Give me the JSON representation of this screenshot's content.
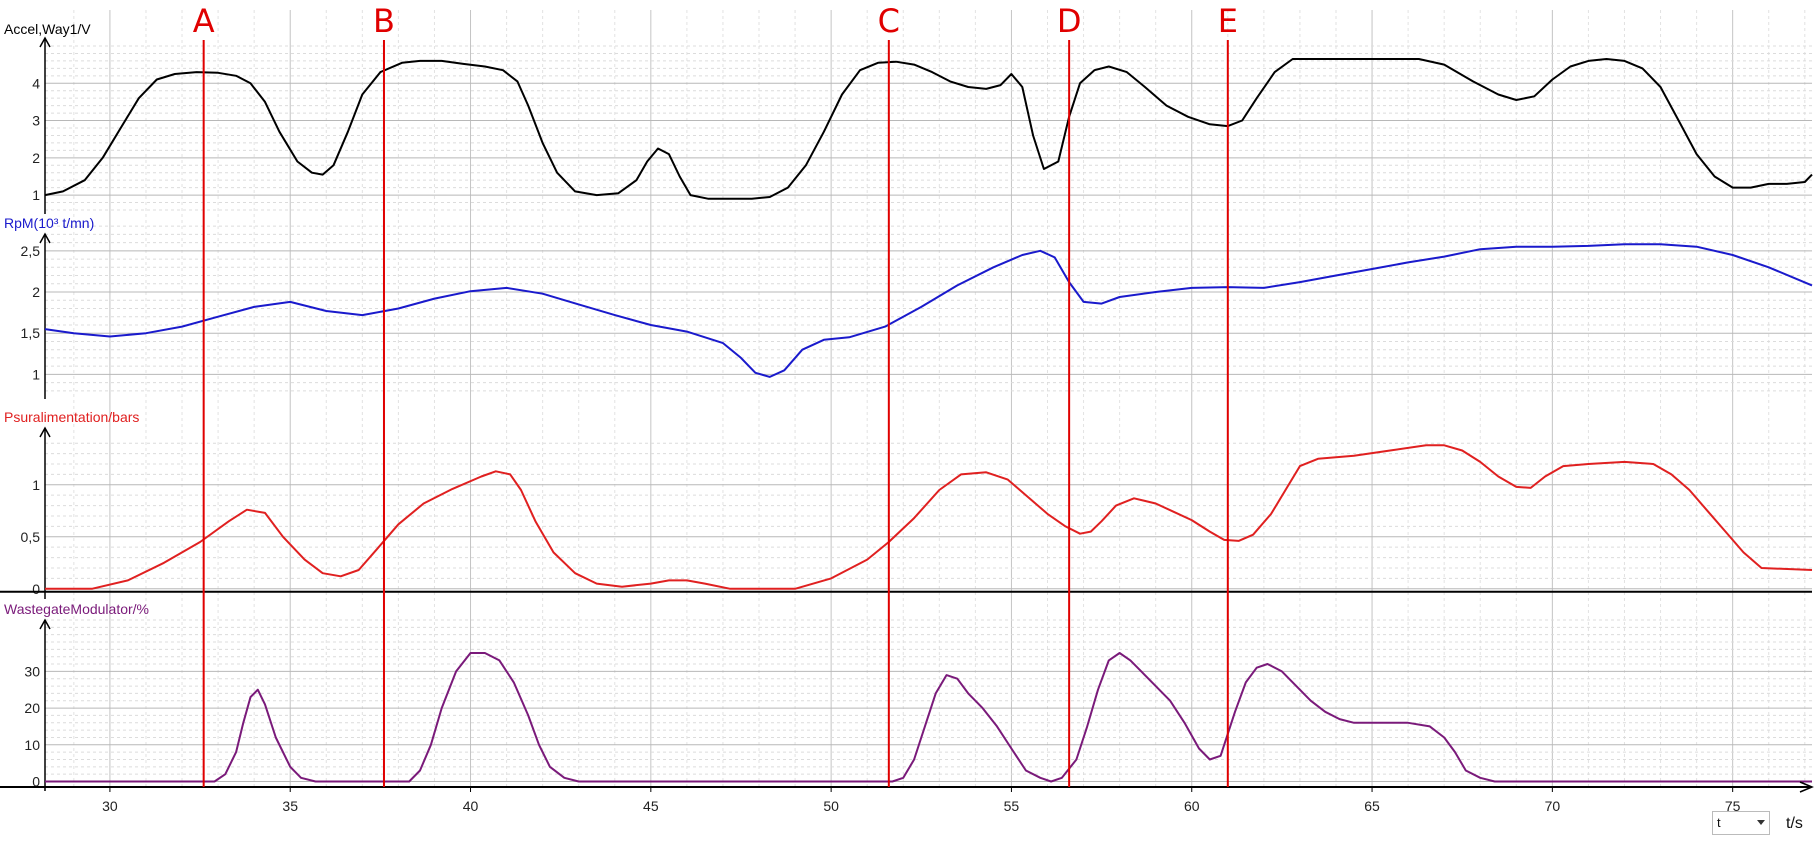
{
  "chart_data": {
    "type": "line",
    "xlim": [
      28.2,
      77.2
    ],
    "x_ticks": [
      30,
      35,
      40,
      45,
      50,
      55,
      60,
      65,
      70,
      75
    ],
    "x_axis_unit": "t/s",
    "x_selector_value": "t",
    "grid": true,
    "markers": [
      {
        "label": "A",
        "x": 32.6
      },
      {
        "label": "B",
        "x": 37.6
      },
      {
        "label": "C",
        "x": 51.6
      },
      {
        "label": "D",
        "x": 56.6
      },
      {
        "label": "E",
        "x": 61.0
      }
    ],
    "panels": [
      {
        "name": "Accel,Way1/V",
        "color": "#000000",
        "ylim": [
          0.6,
          5.0
        ],
        "y_ticks": [
          {
            "v": 1,
            "label": "1"
          },
          {
            "v": 2,
            "label": "2"
          },
          {
            "v": 3,
            "label": "3"
          },
          {
            "v": 4,
            "label": "4"
          }
        ],
        "x": [
          28.2,
          28.7,
          29.3,
          29.8,
          30.3,
          30.8,
          31.3,
          31.8,
          32.4,
          33.0,
          33.5,
          33.9,
          34.3,
          34.7,
          35.2,
          35.6,
          35.9,
          36.2,
          36.6,
          37.0,
          37.5,
          38.1,
          38.6,
          39.2,
          39.8,
          40.4,
          40.9,
          41.3,
          41.6,
          42.0,
          42.4,
          42.9,
          43.5,
          44.1,
          44.6,
          44.9,
          45.2,
          45.5,
          45.8,
          46.1,
          46.6,
          47.2,
          47.8,
          48.3,
          48.8,
          49.3,
          49.8,
          50.3,
          50.8,
          51.3,
          51.8,
          52.3,
          52.8,
          53.3,
          53.8,
          54.3,
          54.7,
          55.0,
          55.3,
          55.6,
          55.9,
          56.3,
          56.6,
          56.9,
          57.3,
          57.7,
          58.2,
          58.7,
          59.3,
          59.9,
          60.5,
          61.0,
          61.4,
          61.8,
          62.3,
          62.8,
          63.5,
          64.5,
          65.5,
          66.3,
          67.0,
          67.8,
          68.5,
          69.0,
          69.5,
          70.0,
          70.5,
          71.0,
          71.5,
          72.0,
          72.5,
          73.0,
          73.5,
          74.0,
          74.5,
          75.0,
          75.5,
          76.0,
          76.5,
          77.0,
          77.2
        ],
        "y": [
          1.0,
          1.1,
          1.4,
          2.0,
          2.8,
          3.6,
          4.1,
          4.25,
          4.3,
          4.28,
          4.2,
          4.0,
          3.5,
          2.7,
          1.9,
          1.6,
          1.55,
          1.8,
          2.7,
          3.7,
          4.3,
          4.55,
          4.6,
          4.6,
          4.52,
          4.45,
          4.35,
          4.05,
          3.4,
          2.4,
          1.6,
          1.1,
          1.0,
          1.05,
          1.4,
          1.9,
          2.25,
          2.1,
          1.5,
          1.0,
          0.9,
          0.9,
          0.9,
          0.95,
          1.2,
          1.8,
          2.7,
          3.7,
          4.35,
          4.55,
          4.58,
          4.5,
          4.3,
          4.05,
          3.9,
          3.85,
          3.95,
          4.25,
          3.9,
          2.6,
          1.7,
          1.9,
          3.1,
          4.0,
          4.35,
          4.45,
          4.3,
          3.9,
          3.4,
          3.1,
          2.9,
          2.85,
          3.0,
          3.6,
          4.3,
          4.65,
          4.65,
          4.65,
          4.65,
          4.65,
          4.5,
          4.05,
          3.7,
          3.55,
          3.65,
          4.1,
          4.45,
          4.6,
          4.65,
          4.6,
          4.4,
          3.9,
          3.0,
          2.1,
          1.5,
          1.2,
          1.2,
          1.3,
          1.3,
          1.35,
          1.55
        ]
      },
      {
        "name": "RpM(10³ t/mn)",
        "color": "#1a1acc",
        "ylim": [
          0.75,
          2.85
        ],
        "y_ticks": [
          {
            "v": 1,
            "label": "1"
          },
          {
            "v": 1.5,
            "label": "1,5"
          },
          {
            "v": 2,
            "label": "2"
          },
          {
            "v": 2.5,
            "label": "2,5"
          }
        ],
        "x": [
          28.2,
          29.0,
          30.0,
          31.0,
          32.0,
          33.0,
          34.0,
          35.0,
          36.0,
          37.0,
          38.0,
          39.0,
          40.0,
          41.0,
          42.0,
          43.0,
          44.0,
          45.0,
          46.0,
          47.0,
          47.5,
          47.9,
          48.3,
          48.7,
          49.2,
          49.8,
          50.5,
          51.5,
          52.5,
          53.5,
          54.5,
          55.3,
          55.8,
          56.2,
          56.6,
          57.0,
          57.5,
          58.0,
          59.0,
          60.0,
          61.0,
          62.0,
          63.0,
          64.0,
          65.0,
          66.0,
          67.0,
          68.0,
          69.0,
          70.0,
          71.0,
          72.0,
          73.0,
          74.0,
          75.0,
          76.0,
          77.2
        ],
        "y": [
          1.55,
          1.5,
          1.46,
          1.5,
          1.58,
          1.7,
          1.82,
          1.88,
          1.77,
          1.72,
          1.8,
          1.92,
          2.01,
          2.05,
          1.98,
          1.85,
          1.72,
          1.6,
          1.52,
          1.38,
          1.2,
          1.02,
          0.97,
          1.05,
          1.3,
          1.42,
          1.45,
          1.58,
          1.82,
          2.08,
          2.3,
          2.45,
          2.5,
          2.42,
          2.12,
          1.88,
          1.86,
          1.94,
          2.0,
          2.05,
          2.06,
          2.05,
          2.12,
          2.2,
          2.28,
          2.36,
          2.43,
          2.52,
          2.55,
          2.55,
          2.56,
          2.58,
          2.58,
          2.55,
          2.45,
          2.3,
          2.08
        ]
      },
      {
        "name": "Psuralimentation/bars",
        "color": "#e02020",
        "ylim": [
          -0.06,
          1.45
        ],
        "y_ticks": [
          {
            "v": 0,
            "label": "0"
          },
          {
            "v": 0.5,
            "label": "0,5"
          },
          {
            "v": 1,
            "label": "1"
          }
        ],
        "x": [
          28.2,
          29.0,
          29.5,
          30.5,
          31.5,
          32.5,
          33.3,
          33.8,
          34.3,
          34.8,
          35.4,
          35.9,
          36.4,
          36.9,
          37.4,
          38.0,
          38.7,
          39.5,
          40.3,
          40.7,
          41.1,
          41.4,
          41.8,
          42.3,
          42.9,
          43.5,
          44.2,
          45.0,
          45.5,
          46.0,
          46.5,
          47.2,
          48.0,
          49.0,
          50.0,
          51.0,
          51.6,
          52.3,
          53.0,
          53.6,
          54.3,
          54.9,
          55.4,
          56.0,
          56.5,
          56.9,
          57.2,
          57.5,
          57.9,
          58.4,
          59.0,
          59.5,
          60.0,
          60.5,
          60.9,
          61.3,
          61.7,
          62.2,
          62.6,
          63.0,
          63.5,
          64.5,
          65.5,
          66.5,
          67.0,
          67.5,
          68.0,
          68.5,
          69.0,
          69.4,
          69.8,
          70.3,
          71.0,
          72.0,
          72.8,
          73.3,
          73.8,
          74.3,
          74.8,
          75.3,
          75.8,
          77.2
        ],
        "y": [
          0.0,
          0.0,
          0.0,
          0.08,
          0.25,
          0.45,
          0.65,
          0.76,
          0.73,
          0.5,
          0.28,
          0.15,
          0.12,
          0.18,
          0.38,
          0.62,
          0.82,
          0.96,
          1.08,
          1.13,
          1.1,
          0.95,
          0.65,
          0.35,
          0.15,
          0.05,
          0.02,
          0.05,
          0.08,
          0.08,
          0.05,
          0.0,
          0.0,
          0.0,
          0.1,
          0.28,
          0.45,
          0.68,
          0.95,
          1.1,
          1.12,
          1.05,
          0.9,
          0.72,
          0.6,
          0.53,
          0.55,
          0.65,
          0.8,
          0.87,
          0.82,
          0.74,
          0.66,
          0.55,
          0.47,
          0.46,
          0.52,
          0.72,
          0.95,
          1.18,
          1.25,
          1.28,
          1.33,
          1.38,
          1.38,
          1.33,
          1.22,
          1.08,
          0.98,
          0.97,
          1.08,
          1.18,
          1.2,
          1.22,
          1.2,
          1.1,
          0.95,
          0.75,
          0.55,
          0.35,
          0.2,
          0.18
        ]
      },
      {
        "name": "WastegateModulator/%",
        "color": "#7a1a7a",
        "ylim": [
          -1.5,
          44
        ],
        "y_ticks": [
          {
            "v": 0,
            "label": "0"
          },
          {
            "v": 10,
            "label": "10"
          },
          {
            "v": 20,
            "label": "20"
          },
          {
            "v": 30,
            "label": "30"
          }
        ],
        "x": [
          28.2,
          32.9,
          33.2,
          33.5,
          33.7,
          33.9,
          34.1,
          34.3,
          34.6,
          35.0,
          35.3,
          35.7,
          36.0,
          38.3,
          38.6,
          38.9,
          39.2,
          39.6,
          40.0,
          40.4,
          40.8,
          41.2,
          41.6,
          41.9,
          42.2,
          42.6,
          43.0,
          51.7,
          52.0,
          52.3,
          52.6,
          52.9,
          53.2,
          53.5,
          53.8,
          54.2,
          54.6,
          55.0,
          55.4,
          55.8,
          56.1,
          56.4,
          56.8,
          57.1,
          57.4,
          57.7,
          58.0,
          58.3,
          58.6,
          59.0,
          59.4,
          59.8,
          60.2,
          60.5,
          60.8,
          61.0,
          61.2,
          61.5,
          61.8,
          62.1,
          62.5,
          62.9,
          63.3,
          63.7,
          64.1,
          64.5,
          65.0,
          65.5,
          66.0,
          66.6,
          67.0,
          67.3,
          67.6,
          68.0,
          68.4,
          77.2
        ],
        "y": [
          0,
          0,
          2,
          8,
          16,
          23,
          25,
          21,
          12,
          4,
          1,
          0,
          0,
          0,
          3,
          10,
          20,
          30,
          35,
          35,
          33,
          27,
          18,
          10,
          4,
          1,
          0,
          0,
          1,
          6,
          15,
          24,
          29,
          28,
          24,
          20,
          15,
          9,
          3,
          1,
          0,
          1,
          6,
          15,
          25,
          33,
          35,
          33,
          30,
          26,
          22,
          16,
          9,
          6,
          7,
          13,
          19,
          27,
          31,
          32,
          30,
          26,
          22,
          19,
          17,
          16,
          16,
          16,
          16,
          15,
          12,
          8,
          3,
          1,
          0,
          0
        ]
      }
    ]
  }
}
